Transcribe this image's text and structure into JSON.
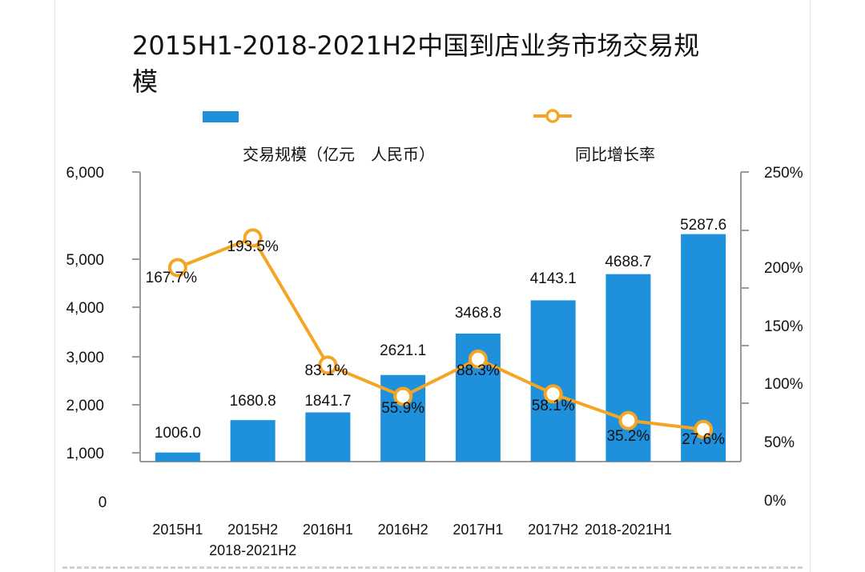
{
  "chart_data": {
    "type": "bar",
    "title": "2015H1-2018-2021H2中国到店业务市场交易规模",
    "categories": [
      "2015H1",
      "2015H2\n2018-2021H2",
      "2016H1",
      "2016H2",
      "2017H1",
      "2017H2",
      "2018-2021H1",
      ""
    ],
    "series": [
      {
        "name": "交易规模（亿元　人民币）",
        "axis": "left",
        "type": "bar",
        "values": [
          1006.0,
          1680.8,
          1841.7,
          2621.1,
          3468.8,
          4143.1,
          4688.7,
          5287.6
        ],
        "labels": [
          "1006.0",
          "1680.8",
          "1841.7",
          "2621.1",
          "3468.8",
          "4143.1",
          "4688.7",
          "5287.6"
        ]
      },
      {
        "name": "同比增长率",
        "axis": "right",
        "type": "line",
        "values": [
          167.7,
          193.5,
          83.1,
          55.9,
          88.3,
          58.1,
          35.2,
          27.6
        ],
        "labels": [
          "167.7%",
          "193.5%",
          "83.1%",
          "55.9%",
          "88.3%",
          "58.1%",
          "35.2%",
          "27.6%"
        ]
      }
    ],
    "y_left": {
      "ticks": [
        6000,
        5000,
        4000,
        3000,
        2000,
        1000,
        0
      ],
      "tick_labels": [
        "6,000",
        "5,000",
        "4,000",
        "3,000",
        "2,000",
        "1,000",
        "0"
      ]
    },
    "y_right": {
      "ticks": [
        250,
        200,
        150,
        100,
        50,
        0
      ],
      "tick_labels": [
        "250%",
        "200%",
        "150%",
        "100%",
        "50%",
        "0%"
      ]
    },
    "grid": false,
    "legend_placement": "top"
  },
  "colors": {
    "bar": "#1E90DC",
    "line": "#F5A524",
    "marker_fill": "#ffffff",
    "axis": "#9a9a9a",
    "text": "#111111"
  }
}
